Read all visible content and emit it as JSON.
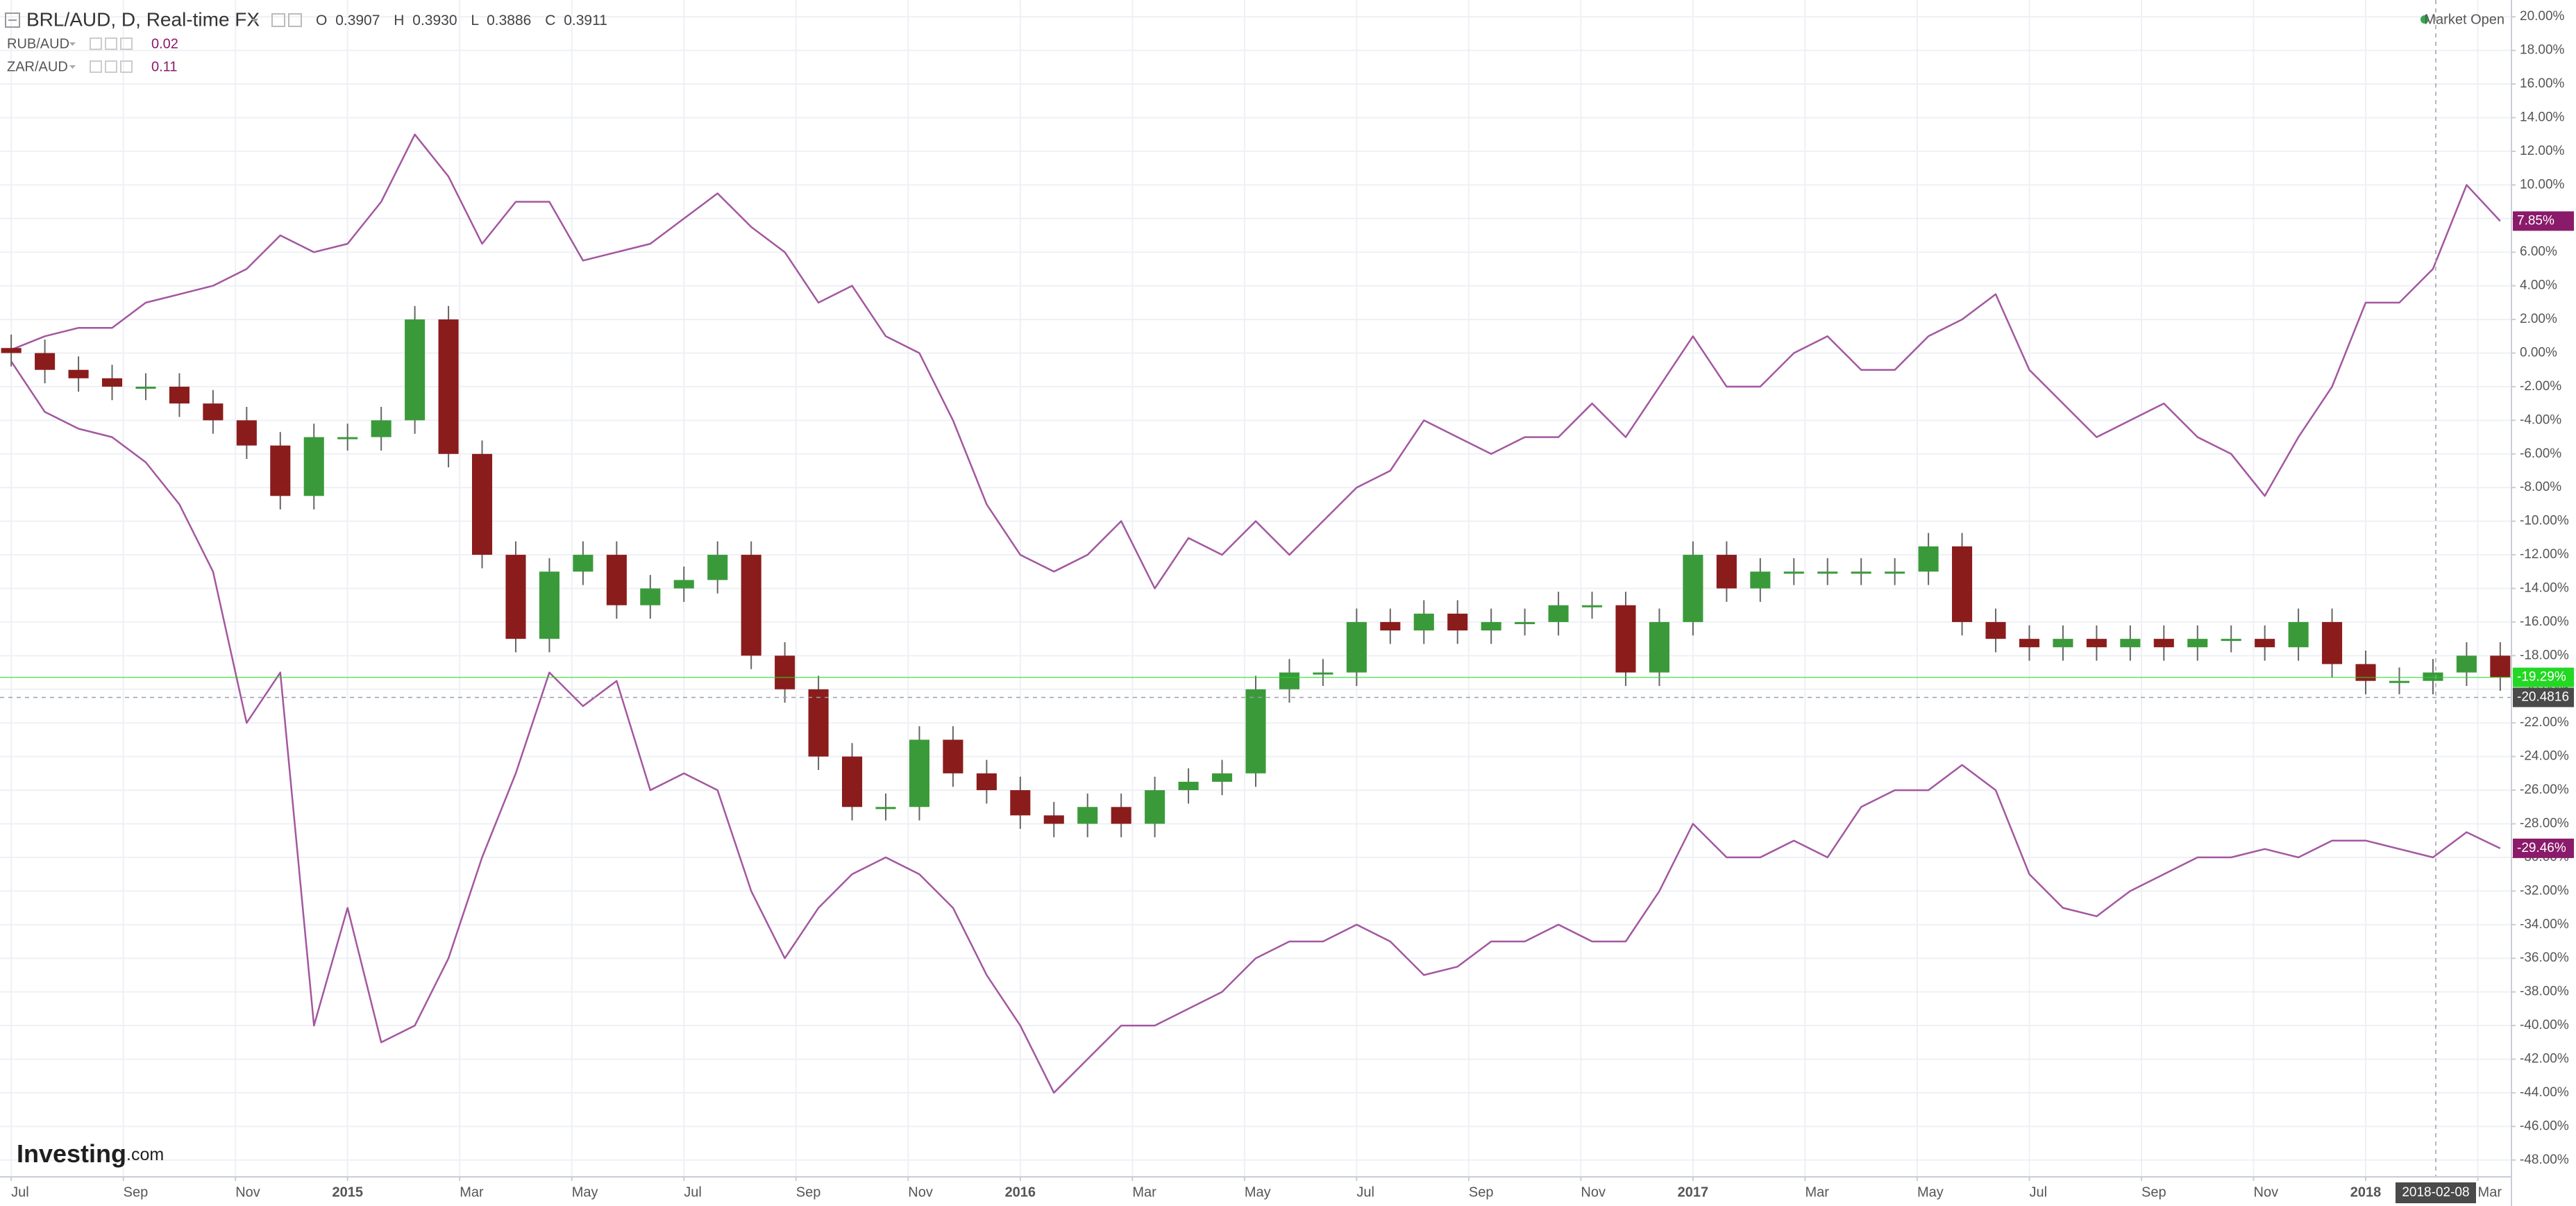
{
  "chart_data": {
    "type": "candlestick",
    "title": "BRL/AUD, D, Real-time FX",
    "ohlc_labels": [
      "O",
      "H",
      "L",
      "C"
    ],
    "ohlc_values": [
      0.3907,
      {
        "value": 0.393,
        "label": "0.3930"
      },
      0.3886,
      0.3911
    ],
    "market_status": "Market Open",
    "brand": "Investing",
    "brand_suffix": ".com",
    "up_color": "#3a9a3a",
    "down_color": "#8b1c1c",
    "grid": true,
    "xlim": [
      -0.2,
      44.6
    ],
    "ylim": [
      -49,
      21
    ],
    "xticks": [
      {
        "value": 0,
        "label": "Jul"
      },
      {
        "value": 2,
        "label": "Sep"
      },
      {
        "value": 4,
        "label": "Nov"
      },
      {
        "value": 6,
        "label": "2015"
      },
      {
        "value": 8,
        "label": "Mar"
      },
      {
        "value": 10,
        "label": "May"
      },
      {
        "value": 12,
        "label": "Jul"
      },
      {
        "value": 14,
        "label": "Sep"
      },
      {
        "value": 16,
        "label": "Nov"
      },
      {
        "value": 18,
        "label": "2016"
      },
      {
        "value": 20,
        "label": "Mar"
      },
      {
        "value": 22,
        "label": "May"
      },
      {
        "value": 24,
        "label": "Jul"
      },
      {
        "value": 26,
        "label": "Sep"
      },
      {
        "value": 28,
        "label": "Nov"
      },
      {
        "value": 30,
        "label": "2017"
      },
      {
        "value": 32,
        "label": "Mar"
      },
      {
        "value": 34,
        "label": "May"
      },
      {
        "value": 36,
        "label": "Jul"
      },
      {
        "value": 38,
        "label": "Sep"
      },
      {
        "value": 40,
        "label": "Nov"
      },
      {
        "value": 42,
        "label": "2018"
      },
      {
        "value": 44,
        "label": "Mar"
      }
    ],
    "yticks": [
      {
        "value": 20,
        "label": "20.00%"
      },
      {
        "value": 18,
        "label": "18.00%"
      },
      {
        "value": 16,
        "label": "16.00%"
      },
      {
        "value": 14,
        "label": "14.00%"
      },
      {
        "value": 12,
        "label": "12.00%"
      },
      {
        "value": 10,
        "label": "10.00%"
      },
      {
        "value": 8,
        "label": "8.00%"
      },
      {
        "value": 6,
        "label": "6.00%"
      },
      {
        "value": 4,
        "label": "4.00%"
      },
      {
        "value": 2,
        "label": "2.00%"
      },
      {
        "value": 0,
        "label": "0.00%"
      },
      {
        "value": -2,
        "label": "-2.00%"
      },
      {
        "value": -4,
        "label": "-4.00%"
      },
      {
        "value": -6,
        "label": "-6.00%"
      },
      {
        "value": -8,
        "label": "-8.00%"
      },
      {
        "value": -10,
        "label": "-10.00%"
      },
      {
        "value": -12,
        "label": "-12.00%"
      },
      {
        "value": -14,
        "label": "-14.00%"
      },
      {
        "value": -16,
        "label": "-16.00%"
      },
      {
        "value": -18,
        "label": "-18.00%"
      },
      {
        "value": -20,
        "label": "-20.00%"
      },
      {
        "value": -22,
        "label": "-22.00%"
      },
      {
        "value": -24,
        "label": "-24.00%"
      },
      {
        "value": -26,
        "label": "-26.00%"
      },
      {
        "value": -28,
        "label": "-28.00%"
      },
      {
        "value": -30,
        "label": "-30.00%"
      },
      {
        "value": -32,
        "label": "-32.00%"
      },
      {
        "value": -34,
        "label": "-34.00%"
      },
      {
        "value": -36,
        "label": "-36.00%"
      },
      {
        "value": -38,
        "label": "-38.00%"
      },
      {
        "value": -40,
        "label": "-40.00%"
      },
      {
        "value": -42,
        "label": "-42.00%"
      },
      {
        "value": -44,
        "label": "-44.00%"
      },
      {
        "value": -46,
        "label": "-46.00%"
      },
      {
        "value": -48,
        "label": "-48.00%"
      }
    ],
    "x": [
      0,
      0.6,
      1.2,
      1.8,
      2.4,
      3,
      3.6,
      4.2,
      4.8,
      5.4,
      6,
      6.6,
      7.2,
      7.8,
      8.4,
      9,
      9.6,
      10.2,
      10.8,
      11.4,
      12,
      12.6,
      13.2,
      13.8,
      14.4,
      15,
      15.6,
      16.2,
      16.8,
      17.4,
      18,
      18.6,
      19.2,
      19.8,
      20.4,
      21,
      21.6,
      22.2,
      22.8,
      23.4,
      24,
      24.6,
      25.2,
      25.8,
      26.4,
      27,
      27.6,
      28.2,
      28.8,
      29.4,
      30,
      30.6,
      31.2,
      31.8,
      32.4,
      33,
      33.6,
      34.2,
      34.8,
      35.4,
      36,
      36.6,
      37.2,
      37.8,
      38.4,
      39,
      39.6,
      40.2,
      40.8,
      41.4,
      42,
      42.6,
      43.2,
      43.8,
      44.4
    ],
    "open": [
      0.3,
      0,
      -1,
      -1.5,
      -2,
      -2,
      -3,
      -4,
      -5.5,
      -8.5,
      -5,
      -5,
      -4,
      2,
      -6,
      -12,
      -17,
      -13,
      -12,
      -15,
      -14,
      -13.5,
      -12,
      -18,
      -20,
      -24,
      -27,
      -27,
      -23,
      -25,
      -26,
      -27.5,
      -28,
      -27,
      -28,
      -26,
      -25.5,
      -25,
      -20,
      -19,
      -19,
      -16,
      -16.5,
      -15.5,
      -16.5,
      -16,
      -16,
      -15,
      -15,
      -19,
      -16,
      -12,
      -14,
      -13,
      -13,
      -13,
      -13,
      -13,
      -11.5,
      -16,
      -17,
      -17.5,
      -17,
      -17.5,
      -17,
      -17.5,
      -17,
      -17,
      -17.5,
      -16,
      -18.5,
      -19.5,
      -19.5,
      -19,
      -18
    ],
    "high": [
      1.1,
      0.8,
      -0.2,
      -0.7,
      -1.2,
      -1.2,
      -2.2,
      -3.2,
      -4.7,
      -4.2,
      -4.2,
      -3.2,
      2.8,
      2.8,
      -5.2,
      -11.2,
      -12.2,
      -11.2,
      -11.2,
      -13.2,
      -12.7,
      -11.2,
      -11.2,
      -17.2,
      -19.2,
      -23.2,
      -26.2,
      -22.2,
      -22.2,
      -24.2,
      -25.2,
      -26.7,
      -26.2,
      -26.2,
      -25.2,
      -24.7,
      -24.2,
      -19.2,
      -18.2,
      -18.2,
      -15.2,
      -15.2,
      -14.7,
      -14.7,
      -15.2,
      -15.2,
      -14.2,
      -14.2,
      -14.2,
      -15.2,
      -11.2,
      -11.2,
      -12.2,
      -12.2,
      -12.2,
      -12.2,
      -12.2,
      -10.7,
      -10.7,
      -15.2,
      -16.2,
      -16.2,
      -16.2,
      -16.2,
      -16.2,
      -16.2,
      -16.2,
      -16.2,
      -15.2,
      -15.2,
      -17.7,
      -18.7,
      -18.2,
      -17.2,
      -17.2
    ],
    "low": [
      -0.8,
      -1.8,
      -2.3,
      -2.8,
      -2.8,
      -3.8,
      -4.8,
      -6.3,
      -9.3,
      -9.3,
      -5.8,
      -5.8,
      -4.8,
      -6.8,
      -12.8,
      -17.8,
      -17.8,
      -13.8,
      -15.8,
      -15.8,
      -14.8,
      -14.3,
      -18.8,
      -20.8,
      -24.8,
      -27.8,
      -27.8,
      -27.8,
      -25.8,
      -26.8,
      -28.3,
      -28.8,
      -28.8,
      -28.8,
      -28.8,
      -26.8,
      -26.3,
      -25.8,
      -20.8,
      -19.8,
      -19.8,
      -17.3,
      -17.3,
      -17.3,
      -17.3,
      -16.8,
      -16.8,
      -15.8,
      -19.8,
      -19.8,
      -16.8,
      -14.8,
      -14.8,
      -13.8,
      -13.8,
      -13.8,
      -13.8,
      -13.8,
      -16.8,
      -17.8,
      -18.3,
      -18.3,
      -18.3,
      -18.3,
      -18.3,
      -18.3,
      -17.8,
      -18.3,
      -18.3,
      -19.3,
      -20.3,
      -20.3,
      -20.3,
      -19.8,
      -20.09
    ],
    "close": [
      0,
      -1,
      -1.5,
      -2,
      -2,
      -3,
      -4,
      -5.5,
      -8.5,
      -5,
      -5,
      -4,
      2,
      -6,
      -12,
      -17,
      -13,
      -12,
      -15,
      -14,
      -13.5,
      -12,
      -18,
      -20,
      -24,
      -27,
      -27,
      -23,
      -25,
      -26,
      -27.5,
      -28,
      -27,
      -28,
      -26,
      -25.5,
      -25,
      -20,
      -19,
      -19,
      -16,
      -16.5,
      -15.5,
      -16.5,
      -16,
      -16,
      -15,
      -15,
      -19,
      -16,
      -12,
      -14,
      -13,
      -13,
      -13,
      -13,
      -13,
      -11.5,
      -16,
      -17,
      -17.5,
      -17,
      -17.5,
      -17,
      -17.5,
      -17,
      -17,
      -17.5,
      -16,
      -18.5,
      -19.5,
      -19.5,
      -19,
      -18,
      -19.29
    ],
    "series": [
      {
        "name": "RUB/AUD",
        "legend_value": 0.02,
        "color": "#a3579f",
        "values": [
          -0.5,
          -3.5,
          -4.5,
          -5,
          -6.5,
          -9,
          -13,
          -22,
          -19,
          -40,
          -33,
          -41,
          -40,
          -36,
          -30,
          -25,
          -19,
          -21,
          -19.5,
          -26,
          -25,
          -26,
          -32,
          -36,
          -33,
          -31,
          -30,
          -31,
          -33,
          -37,
          -40,
          -44,
          -42,
          -40,
          -40,
          -39,
          -38,
          -36,
          -35,
          -35,
          -34,
          -35,
          -37,
          -36.5,
          -35,
          -35,
          -34,
          -35,
          -35,
          -32,
          -28,
          -30,
          -30,
          -29,
          -30,
          -27,
          -26,
          -26,
          -24.5,
          -26,
          -31,
          -33,
          -33.5,
          -32,
          -31,
          -30,
          -30,
          -29.5,
          -30,
          -29,
          -29,
          -29.5,
          -30,
          -28.5,
          -29.46
        ]
      },
      {
        "name": "ZAR/AUD",
        "legend_value": 0.11,
        "color": "#a3579f",
        "values": [
          0.2,
          1,
          1.5,
          1.5,
          3,
          3.5,
          4,
          5,
          7,
          6,
          6.5,
          9,
          13,
          10.5,
          6.5,
          9,
          9,
          5.5,
          6,
          6.5,
          8,
          9.5,
          7.5,
          6,
          3,
          4,
          1,
          0,
          -4,
          -9,
          -12,
          -13,
          -12,
          -10,
          -14,
          -11,
          -12,
          -10,
          -12,
          -10,
          -8,
          -7,
          -4,
          -5,
          -6,
          -5,
          -5,
          -3,
          -5,
          -2,
          1,
          -2,
          -2,
          0,
          1,
          -1,
          -1,
          1,
          2,
          3.5,
          -1,
          -3,
          -5,
          -4,
          -3,
          -5,
          -6,
          -8.5,
          -5,
          -2,
          3,
          3,
          5,
          10,
          7.85
        ]
      }
    ],
    "price_labels": [
      {
        "value": 7.85,
        "label": "7.85%",
        "color": "#8a1a6a"
      },
      {
        "value": -19.29,
        "label": "-19.29%",
        "color": "#22d822",
        "line": true
      },
      {
        "value": -29.46,
        "label": "-29.46%",
        "color": "#8a1a6a"
      }
    ],
    "crosshair": {
      "x": 43.25,
      "x_label": "2018-02-08",
      "y": -20.4816
    }
  }
}
